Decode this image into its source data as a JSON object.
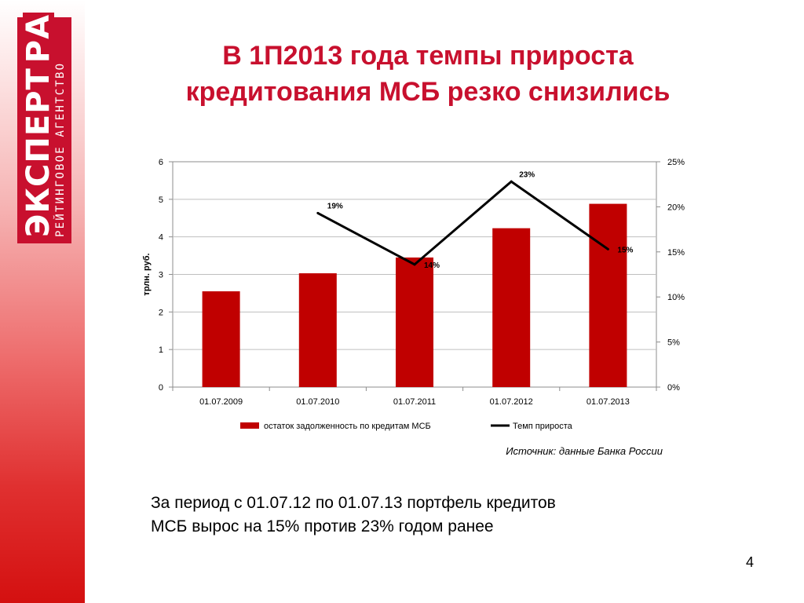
{
  "logo": {
    "main": "ЭКСПЕРТ",
    "ra": "РА",
    "sub": "РЕЙТИНГОВОЕ АГЕНТСТВО"
  },
  "title": {
    "line1": "В 1П2013 года темпы прироста",
    "line2": "кредитования МСБ резко снизились"
  },
  "chart_data": {
    "type": "bar",
    "categories": [
      "01.07.2009",
      "01.07.2010",
      "01.07.2011",
      "01.07.2012",
      "01.07.2013"
    ],
    "ylabel": "трлн. руб.",
    "ylim": [
      0,
      6
    ],
    "y_ticks": [
      "0",
      "1",
      "2",
      "3",
      "4",
      "5",
      "6"
    ],
    "y2lim": [
      0,
      25
    ],
    "y2_ticks": [
      "0%",
      "5%",
      "10%",
      "15%",
      "20%",
      "25%"
    ],
    "grid": true,
    "legend_position": "bottom",
    "series": [
      {
        "name": "остаток задолженность по кредитам МСБ",
        "type": "bar",
        "axis": "left",
        "color": "#c00000",
        "values": [
          2.55,
          3.03,
          3.45,
          4.23,
          4.88
        ]
      },
      {
        "name": "Темп прироста",
        "type": "line",
        "axis": "right",
        "color": "#000000",
        "values": [
          null,
          19.3,
          13.6,
          22.8,
          15.3
        ],
        "labels": [
          "",
          "19%",
          "14%",
          "23%",
          "15%"
        ]
      }
    ]
  },
  "source": "Источник: данные Банка России",
  "body": {
    "line1": "За период с 01.07.12 по 01.07.13  портфель кредитов",
    "line2": "МСБ вырос на 15% против 23% годом ранее"
  },
  "page_number": "4"
}
